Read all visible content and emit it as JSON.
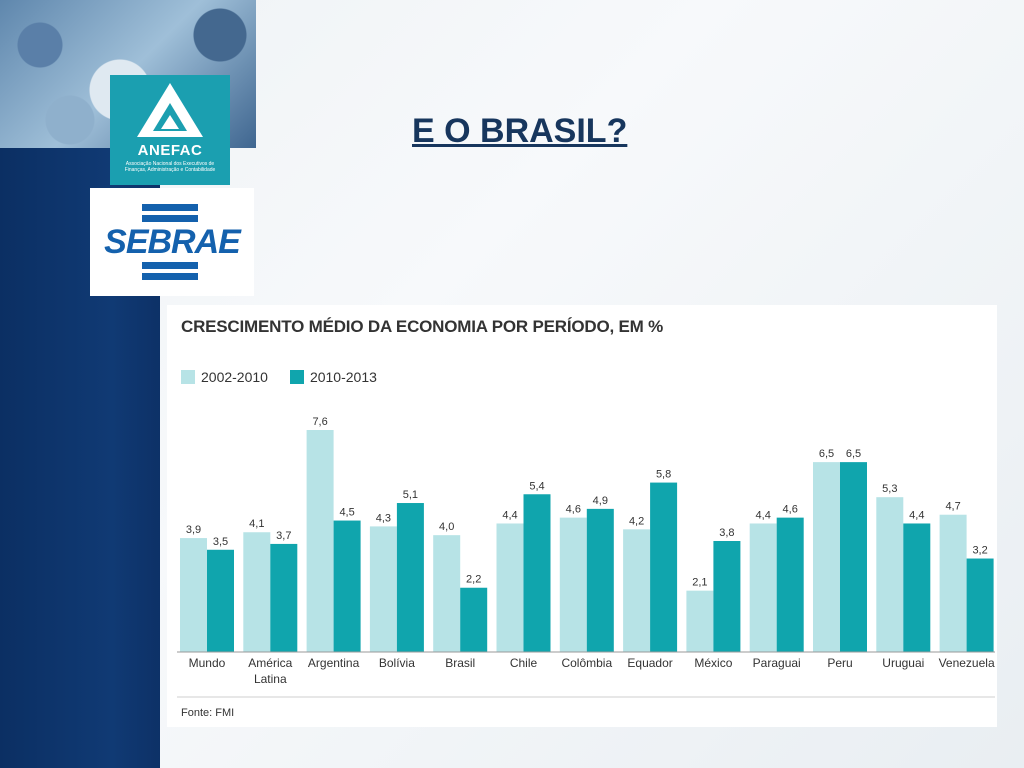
{
  "slide": {
    "title": "E O BRASIL?"
  },
  "logos": {
    "anefac_name": "ANEFAC",
    "anefac_subtitle": "Associação Nacional dos Executivos de Finanças, Administração e Contabilidade",
    "sebrae_name": "SEBRAE"
  },
  "colors": {
    "series_2002_2010": "#b7e3e6",
    "series_2010_2013": "#10a5ad",
    "title_color": "#17365d",
    "sidebar": "#0b2f63"
  },
  "chart_data": {
    "type": "bar",
    "title": "CRESCIMENTO MÉDIO DA ECONOMIA POR PERÍODO, EM %",
    "categories": [
      "Mundo",
      "América Latina",
      "Argentina",
      "Bolívia",
      "Brasil",
      "Chile",
      "Colômbia",
      "Equador",
      "México",
      "Paraguai",
      "Peru",
      "Uruguai",
      "Venezuela"
    ],
    "series": [
      {
        "name": "2002-2010",
        "values": [
          3.9,
          4.1,
          7.6,
          4.3,
          4.0,
          4.4,
          4.6,
          4.2,
          2.1,
          4.4,
          6.5,
          5.3,
          4.7
        ]
      },
      {
        "name": "2010-2013",
        "values": [
          3.5,
          3.7,
          4.5,
          5.1,
          2.2,
          5.4,
          4.9,
          5.8,
          3.8,
          4.6,
          6.5,
          4.4,
          3.2
        ]
      }
    ],
    "value_labels": [
      [
        "3,9",
        "4,1",
        "7,6",
        "4,3",
        "4,0",
        "4,4",
        "4,6",
        "4,2",
        "2,1",
        "4,4",
        "6,5",
        "5,3",
        "4,7"
      ],
      [
        "3,5",
        "3,7",
        "4,5",
        "5,1",
        "2,2",
        "5,4",
        "4,9",
        "5,8",
        "3,8",
        "4,6",
        "6,5",
        "4,4",
        "3,2"
      ]
    ],
    "ylim": [
      0,
      7.6
    ],
    "grid": false,
    "legend_position": "top-left",
    "source": "Fonte: FMI"
  }
}
